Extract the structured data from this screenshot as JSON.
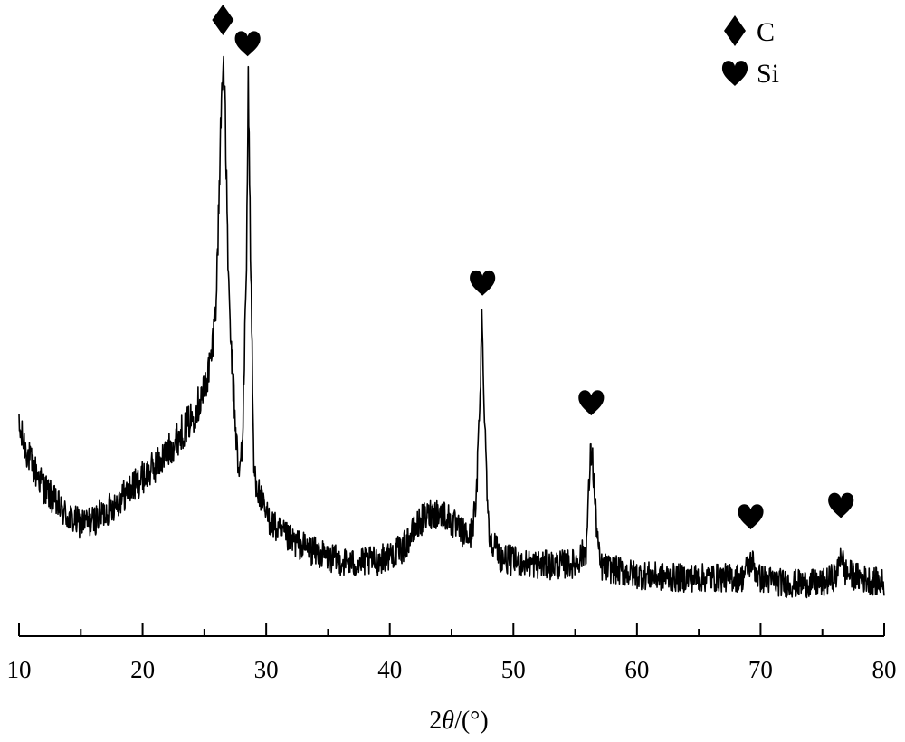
{
  "chart_data": {
    "type": "line",
    "title": "",
    "xlabel_prefix": "2",
    "xlabel_symbol": "θ",
    "xlabel_suffix": "/(°)",
    "ylabel": "",
    "xlim": [
      10,
      80
    ],
    "ylim": [
      0,
      1
    ],
    "x_ticks": [
      10,
      20,
      30,
      40,
      50,
      60,
      70,
      80
    ],
    "x_tick_labels": [
      "10",
      "20",
      "30",
      "40",
      "50",
      "60",
      "70",
      "80"
    ],
    "y_axis_visible": false,
    "grid": false,
    "legend_position": "top-right",
    "legend": [
      {
        "symbol": "diamond-icon",
        "label": "C"
      },
      {
        "symbol": "heart-icon",
        "label": "Si"
      }
    ],
    "series": [
      {
        "color": "#000000",
        "noise": 0.04,
        "points": [
          [
            10.0,
            0.31
          ],
          [
            11.0,
            0.25
          ],
          [
            12.0,
            0.21
          ],
          [
            13.0,
            0.18
          ],
          [
            14.0,
            0.155
          ],
          [
            15.0,
            0.145
          ],
          [
            16.0,
            0.15
          ],
          [
            17.0,
            0.165
          ],
          [
            18.0,
            0.185
          ],
          [
            19.0,
            0.205
          ],
          [
            20.0,
            0.225
          ],
          [
            21.0,
            0.245
          ],
          [
            22.0,
            0.27
          ],
          [
            23.0,
            0.3
          ],
          [
            24.0,
            0.33
          ],
          [
            25.0,
            0.38
          ],
          [
            25.6,
            0.44
          ],
          [
            26.0,
            0.56
          ],
          [
            26.3,
            0.82
          ],
          [
            26.5,
            0.98
          ],
          [
            26.7,
            0.84
          ],
          [
            27.0,
            0.52
          ],
          [
            27.4,
            0.36
          ],
          [
            27.8,
            0.22
          ],
          [
            28.1,
            0.3
          ],
          [
            28.4,
            0.6
          ],
          [
            28.55,
            0.92
          ],
          [
            28.75,
            0.6
          ],
          [
            29.0,
            0.24
          ],
          [
            29.5,
            0.19
          ],
          [
            30.0,
            0.16
          ],
          [
            31.0,
            0.13
          ],
          [
            32.0,
            0.115
          ],
          [
            33.0,
            0.105
          ],
          [
            35.0,
            0.085
          ],
          [
            37.0,
            0.075
          ],
          [
            39.0,
            0.08
          ],
          [
            41.0,
            0.1
          ],
          [
            42.5,
            0.15
          ],
          [
            43.5,
            0.165
          ],
          [
            44.5,
            0.16
          ],
          [
            45.5,
            0.135
          ],
          [
            46.5,
            0.12
          ],
          [
            47.0,
            0.18
          ],
          [
            47.3,
            0.38
          ],
          [
            47.45,
            0.5
          ],
          [
            47.7,
            0.32
          ],
          [
            48.0,
            0.13
          ],
          [
            49.0,
            0.085
          ],
          [
            51.0,
            0.075
          ],
          [
            53.0,
            0.072
          ],
          [
            55.0,
            0.075
          ],
          [
            55.9,
            0.1
          ],
          [
            56.2,
            0.25
          ],
          [
            56.35,
            0.28
          ],
          [
            56.6,
            0.18
          ],
          [
            57.0,
            0.07
          ],
          [
            60.0,
            0.055
          ],
          [
            63.0,
            0.05
          ],
          [
            66.0,
            0.05
          ],
          [
            68.5,
            0.05
          ],
          [
            69.0,
            0.07
          ],
          [
            69.3,
            0.08
          ],
          [
            69.8,
            0.05
          ],
          [
            72.0,
            0.04
          ],
          [
            75.0,
            0.04
          ],
          [
            76.2,
            0.055
          ],
          [
            76.5,
            0.1
          ],
          [
            76.8,
            0.06
          ],
          [
            78.0,
            0.05
          ],
          [
            80.0,
            0.04
          ]
        ]
      }
    ],
    "annotations": [
      {
        "symbol": "diamond-icon",
        "x": 26.5,
        "y": 1.0
      },
      {
        "symbol": "heart-icon",
        "x": 28.5,
        "y": 0.96
      },
      {
        "symbol": "heart-icon",
        "x": 47.5,
        "y": 0.54
      },
      {
        "symbol": "heart-icon",
        "x": 56.3,
        "y": 0.33
      },
      {
        "symbol": "heart-icon",
        "x": 69.2,
        "y": 0.13
      },
      {
        "symbol": "heart-icon",
        "x": 76.5,
        "y": 0.15
      }
    ]
  }
}
